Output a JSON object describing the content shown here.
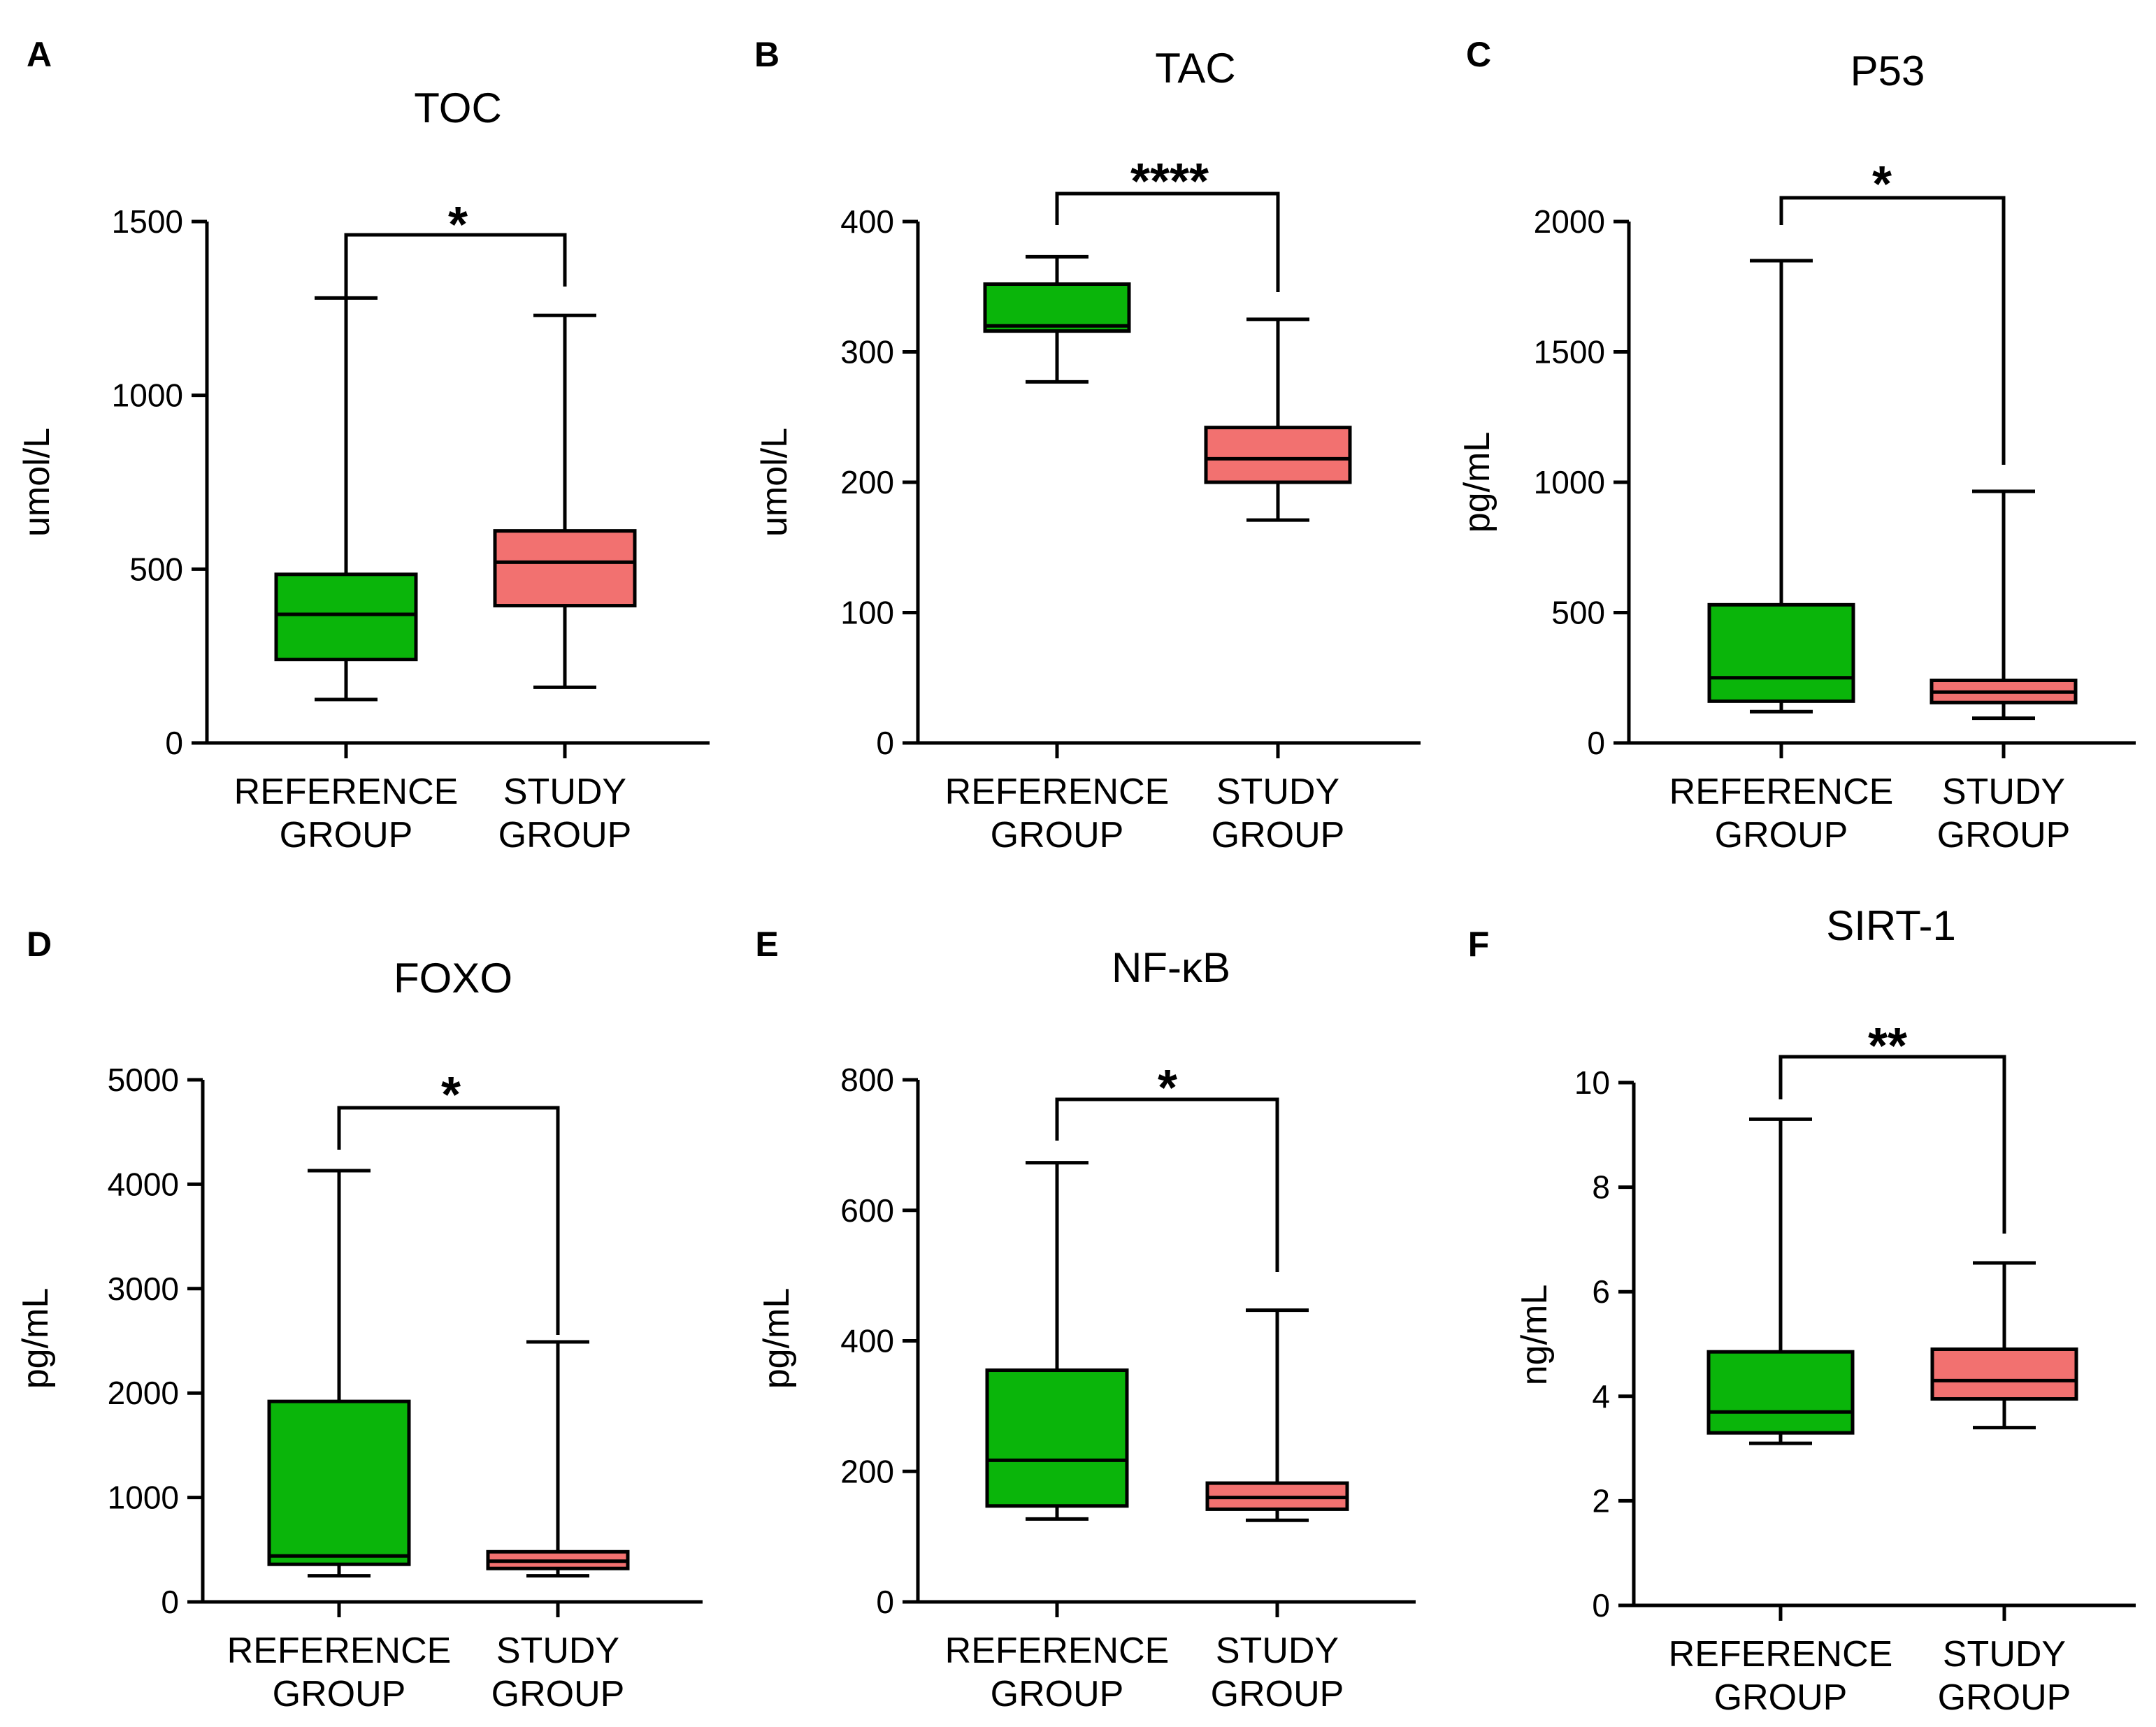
{
  "colors": {
    "reference": "#0ab50a",
    "study": "#f27170"
  },
  "chart_data": [
    {
      "type": "box",
      "panel": "A",
      "title": "TOC",
      "ylabel": "umol/L",
      "ylim": [
        0,
        1500
      ],
      "yticks": [
        0,
        500,
        1000,
        1500
      ],
      "categories": [
        "REFERENCE\nGROUP",
        "STUDY\nGROUP"
      ],
      "series": [
        {
          "name": "REFERENCE GROUP",
          "min": 125,
          "q1": 240,
          "median": 370,
          "q3": 485,
          "max": 1280
        },
        {
          "name": "STUDY GROUP",
          "min": 160,
          "q1": 395,
          "median": 520,
          "q3": 610,
          "max": 1230
        }
      ],
      "significance": "*"
    },
    {
      "type": "box",
      "panel": "B",
      "title": "TAC",
      "ylabel": "umol/L",
      "ylim": [
        0,
        400
      ],
      "yticks": [
        0,
        100,
        200,
        300,
        400
      ],
      "categories": [
        "REFERENCE\nGROUP",
        "STUDY\nGROUP"
      ],
      "series": [
        {
          "name": "REFERENCE GROUP",
          "min": 277,
          "q1": 316,
          "median": 320,
          "q3": 352,
          "max": 373
        },
        {
          "name": "STUDY GROUP",
          "min": 171,
          "q1": 200,
          "median": 218,
          "q3": 242,
          "max": 325
        }
      ],
      "significance": "****"
    },
    {
      "type": "box",
      "panel": "C",
      "title": "P53",
      "ylabel": "pg/mL",
      "ylim": [
        0,
        2000
      ],
      "yticks": [
        0,
        500,
        1000,
        1500,
        2000
      ],
      "categories": [
        "REFERENCE\nGROUP",
        "STUDY\nGROUP"
      ],
      "series": [
        {
          "name": "REFERENCE GROUP",
          "min": 120,
          "q1": 160,
          "median": 250,
          "q3": 530,
          "max": 1850
        },
        {
          "name": "STUDY GROUP",
          "min": 95,
          "q1": 155,
          "median": 195,
          "q3": 240,
          "max": 965
        }
      ],
      "significance": "*"
    },
    {
      "type": "box",
      "panel": "D",
      "title": "FOXO",
      "ylabel": "pg/mL",
      "ylim": [
        0,
        5000
      ],
      "yticks": [
        0,
        1000,
        2000,
        3000,
        4000,
        5000
      ],
      "categories": [
        "REFERENCE\nGROUP",
        "STUDY\nGROUP"
      ],
      "series": [
        {
          "name": "REFERENCE GROUP",
          "min": 250,
          "q1": 360,
          "median": 440,
          "q3": 1920,
          "max": 4130
        },
        {
          "name": "STUDY GROUP",
          "min": 250,
          "q1": 320,
          "median": 390,
          "q3": 480,
          "max": 2490
        }
      ],
      "significance": "*"
    },
    {
      "type": "box",
      "panel": "E",
      "title": "NF-κB",
      "ylabel": "pg/mL",
      "ylim": [
        0,
        800
      ],
      "yticks": [
        0,
        200,
        400,
        600,
        800
      ],
      "categories": [
        "REFERENCE\nGROUP",
        "STUDY\nGROUP"
      ],
      "series": [
        {
          "name": "REFERENCE GROUP",
          "min": 127,
          "q1": 147,
          "median": 217,
          "q3": 355,
          "max": 673
        },
        {
          "name": "STUDY GROUP",
          "min": 125,
          "q1": 142,
          "median": 160,
          "q3": 182,
          "max": 447
        }
      ],
      "significance": "*"
    },
    {
      "type": "box",
      "panel": "F",
      "title": "SIRT-1",
      "ylabel": "ng/mL",
      "ylim": [
        0,
        10
      ],
      "yticks": [
        0,
        2,
        4,
        6,
        8,
        10
      ],
      "categories": [
        "REFERENCE\nGROUP",
        "STUDY\nGROUP"
      ],
      "series": [
        {
          "name": "REFERENCE GROUP",
          "min": 3.1,
          "q1": 3.3,
          "median": 3.7,
          "q3": 4.85,
          "max": 9.3
        },
        {
          "name": "STUDY GROUP",
          "min": 3.4,
          "q1": 3.95,
          "median": 4.3,
          "q3": 4.9,
          "max": 6.55
        }
      ],
      "significance": "**"
    }
  ]
}
